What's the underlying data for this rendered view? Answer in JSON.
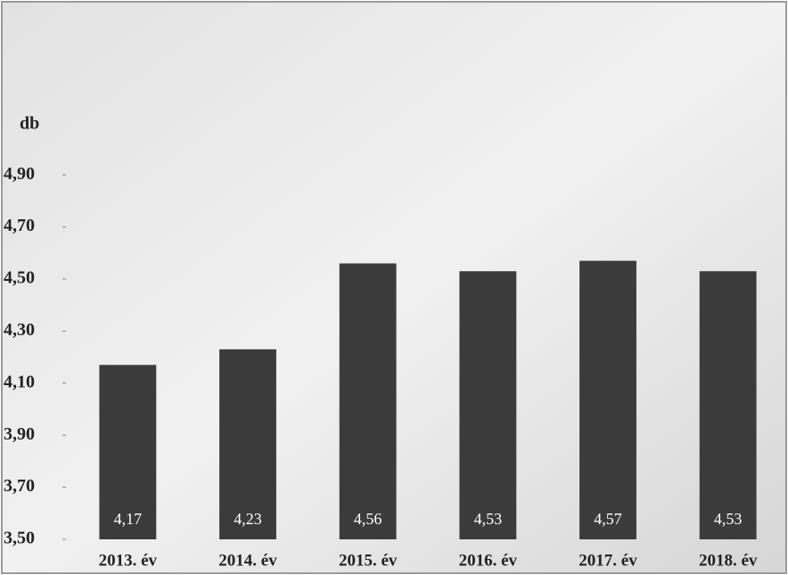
{
  "chart_data": {
    "type": "bar",
    "y_label": "db",
    "categories": [
      "2013. év",
      "2014. év",
      "2015. év",
      "2016. év",
      "2017. év",
      "2018. év"
    ],
    "values": [
      4.17,
      4.23,
      4.56,
      4.53,
      4.57,
      4.53
    ],
    "value_labels": [
      "4,17",
      "4,23",
      "4,56",
      "4,53",
      "4,57",
      "4,53"
    ],
    "color": "#3b3b3b",
    "ylim": [
      3.5,
      5.0
    ],
    "yticks": [
      {
        "value": 3.5,
        "label": "3,50"
      },
      {
        "value": 3.7,
        "label": "3,70"
      },
      {
        "value": 3.9,
        "label": "3,90"
      },
      {
        "value": 4.1,
        "label": "4,10"
      },
      {
        "value": 4.3,
        "label": "4,30"
      },
      {
        "value": 4.5,
        "label": "4,50"
      },
      {
        "value": 4.7,
        "label": "4,70"
      },
      {
        "value": 4.9,
        "label": "4,90"
      }
    ]
  }
}
